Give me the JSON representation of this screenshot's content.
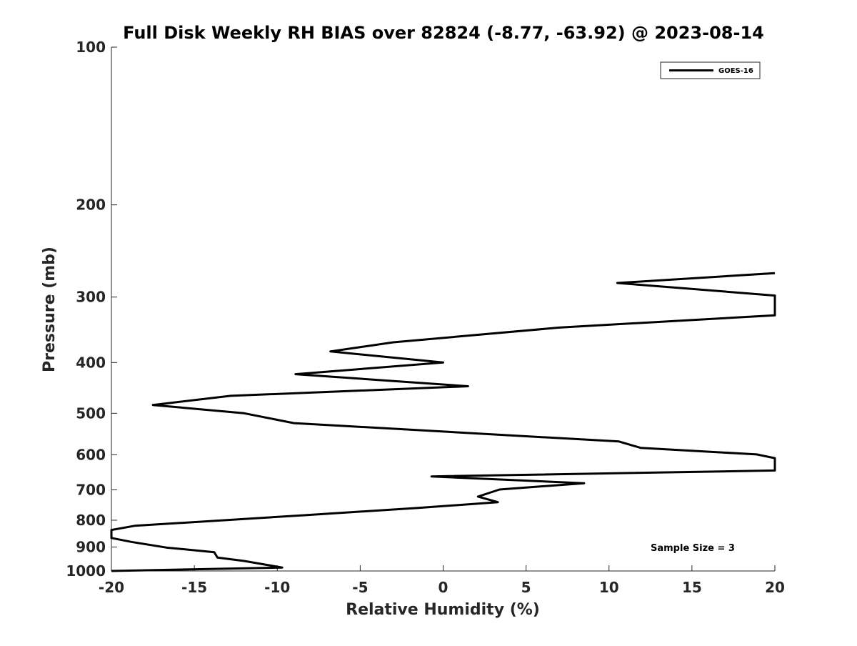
{
  "chart_data": {
    "type": "line",
    "title": "Full Disk Weekly RH BIAS over 82824 (-8.77, -63.92) @ 2023-08-14",
    "xlabel": "Relative Humidity (%)",
    "ylabel": "Pressure (mb)",
    "xlim": [
      -20,
      20
    ],
    "ylim": [
      100,
      1000
    ],
    "yscale": "log",
    "y_reversed": true,
    "grid": false,
    "legend_position": "top-right",
    "x_ticks": [
      "-20",
      "-15",
      "-10",
      "-5",
      "0",
      "5",
      "10",
      "15",
      "20"
    ],
    "y_ticks": [
      "100",
      "200",
      "300",
      "400",
      "500",
      "600",
      "700",
      "800",
      "900",
      "1000"
    ],
    "annotation": "Sample Size = 3",
    "line_color": "#000000",
    "series": [
      {
        "name": "GOES-16",
        "x": [
          20,
          10.5,
          20,
          20,
          7,
          -3,
          -6.8,
          0,
          -8.9,
          1.5,
          -12.8,
          -17.5,
          -12,
          -9,
          10.6,
          11.9,
          18.9,
          20,
          20,
          -0.7,
          8.5,
          3.4,
          2.1,
          3.3,
          -1.5,
          -8.2,
          -18.6,
          -20,
          -20,
          -18.8,
          -16.7,
          -13.8,
          -13.6,
          -12,
          -9.7,
          -20
        ],
        "y": [
          270,
          282,
          298,
          325,
          343,
          366,
          381,
          400,
          421,
          444,
          463,
          482,
          500,
          522,
          566,
          582,
          599,
          609,
          643,
          660,
          680,
          699,
          721,
          739,
          758,
          782,
          820,
          835,
          865,
          880,
          902,
          921,
          943,
          957,
          985,
          1000
        ]
      }
    ]
  }
}
